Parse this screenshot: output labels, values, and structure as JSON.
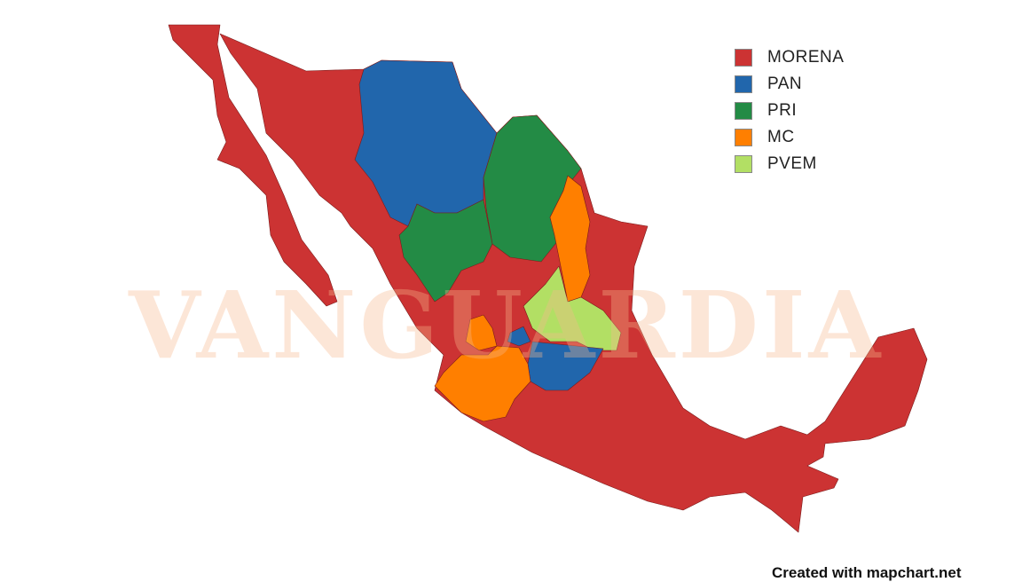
{
  "legend": [
    {
      "label": "MORENA",
      "color": "#cc3333"
    },
    {
      "label": "PAN",
      "color": "#2166ac"
    },
    {
      "label": "PRI",
      "color": "#238b45"
    },
    {
      "label": "MC",
      "color": "#ff7f00"
    },
    {
      "label": "PVEM",
      "color": "#b2df64"
    }
  ],
  "watermark": "VANGUARDIA",
  "credit": "Created with mapchart.net"
}
